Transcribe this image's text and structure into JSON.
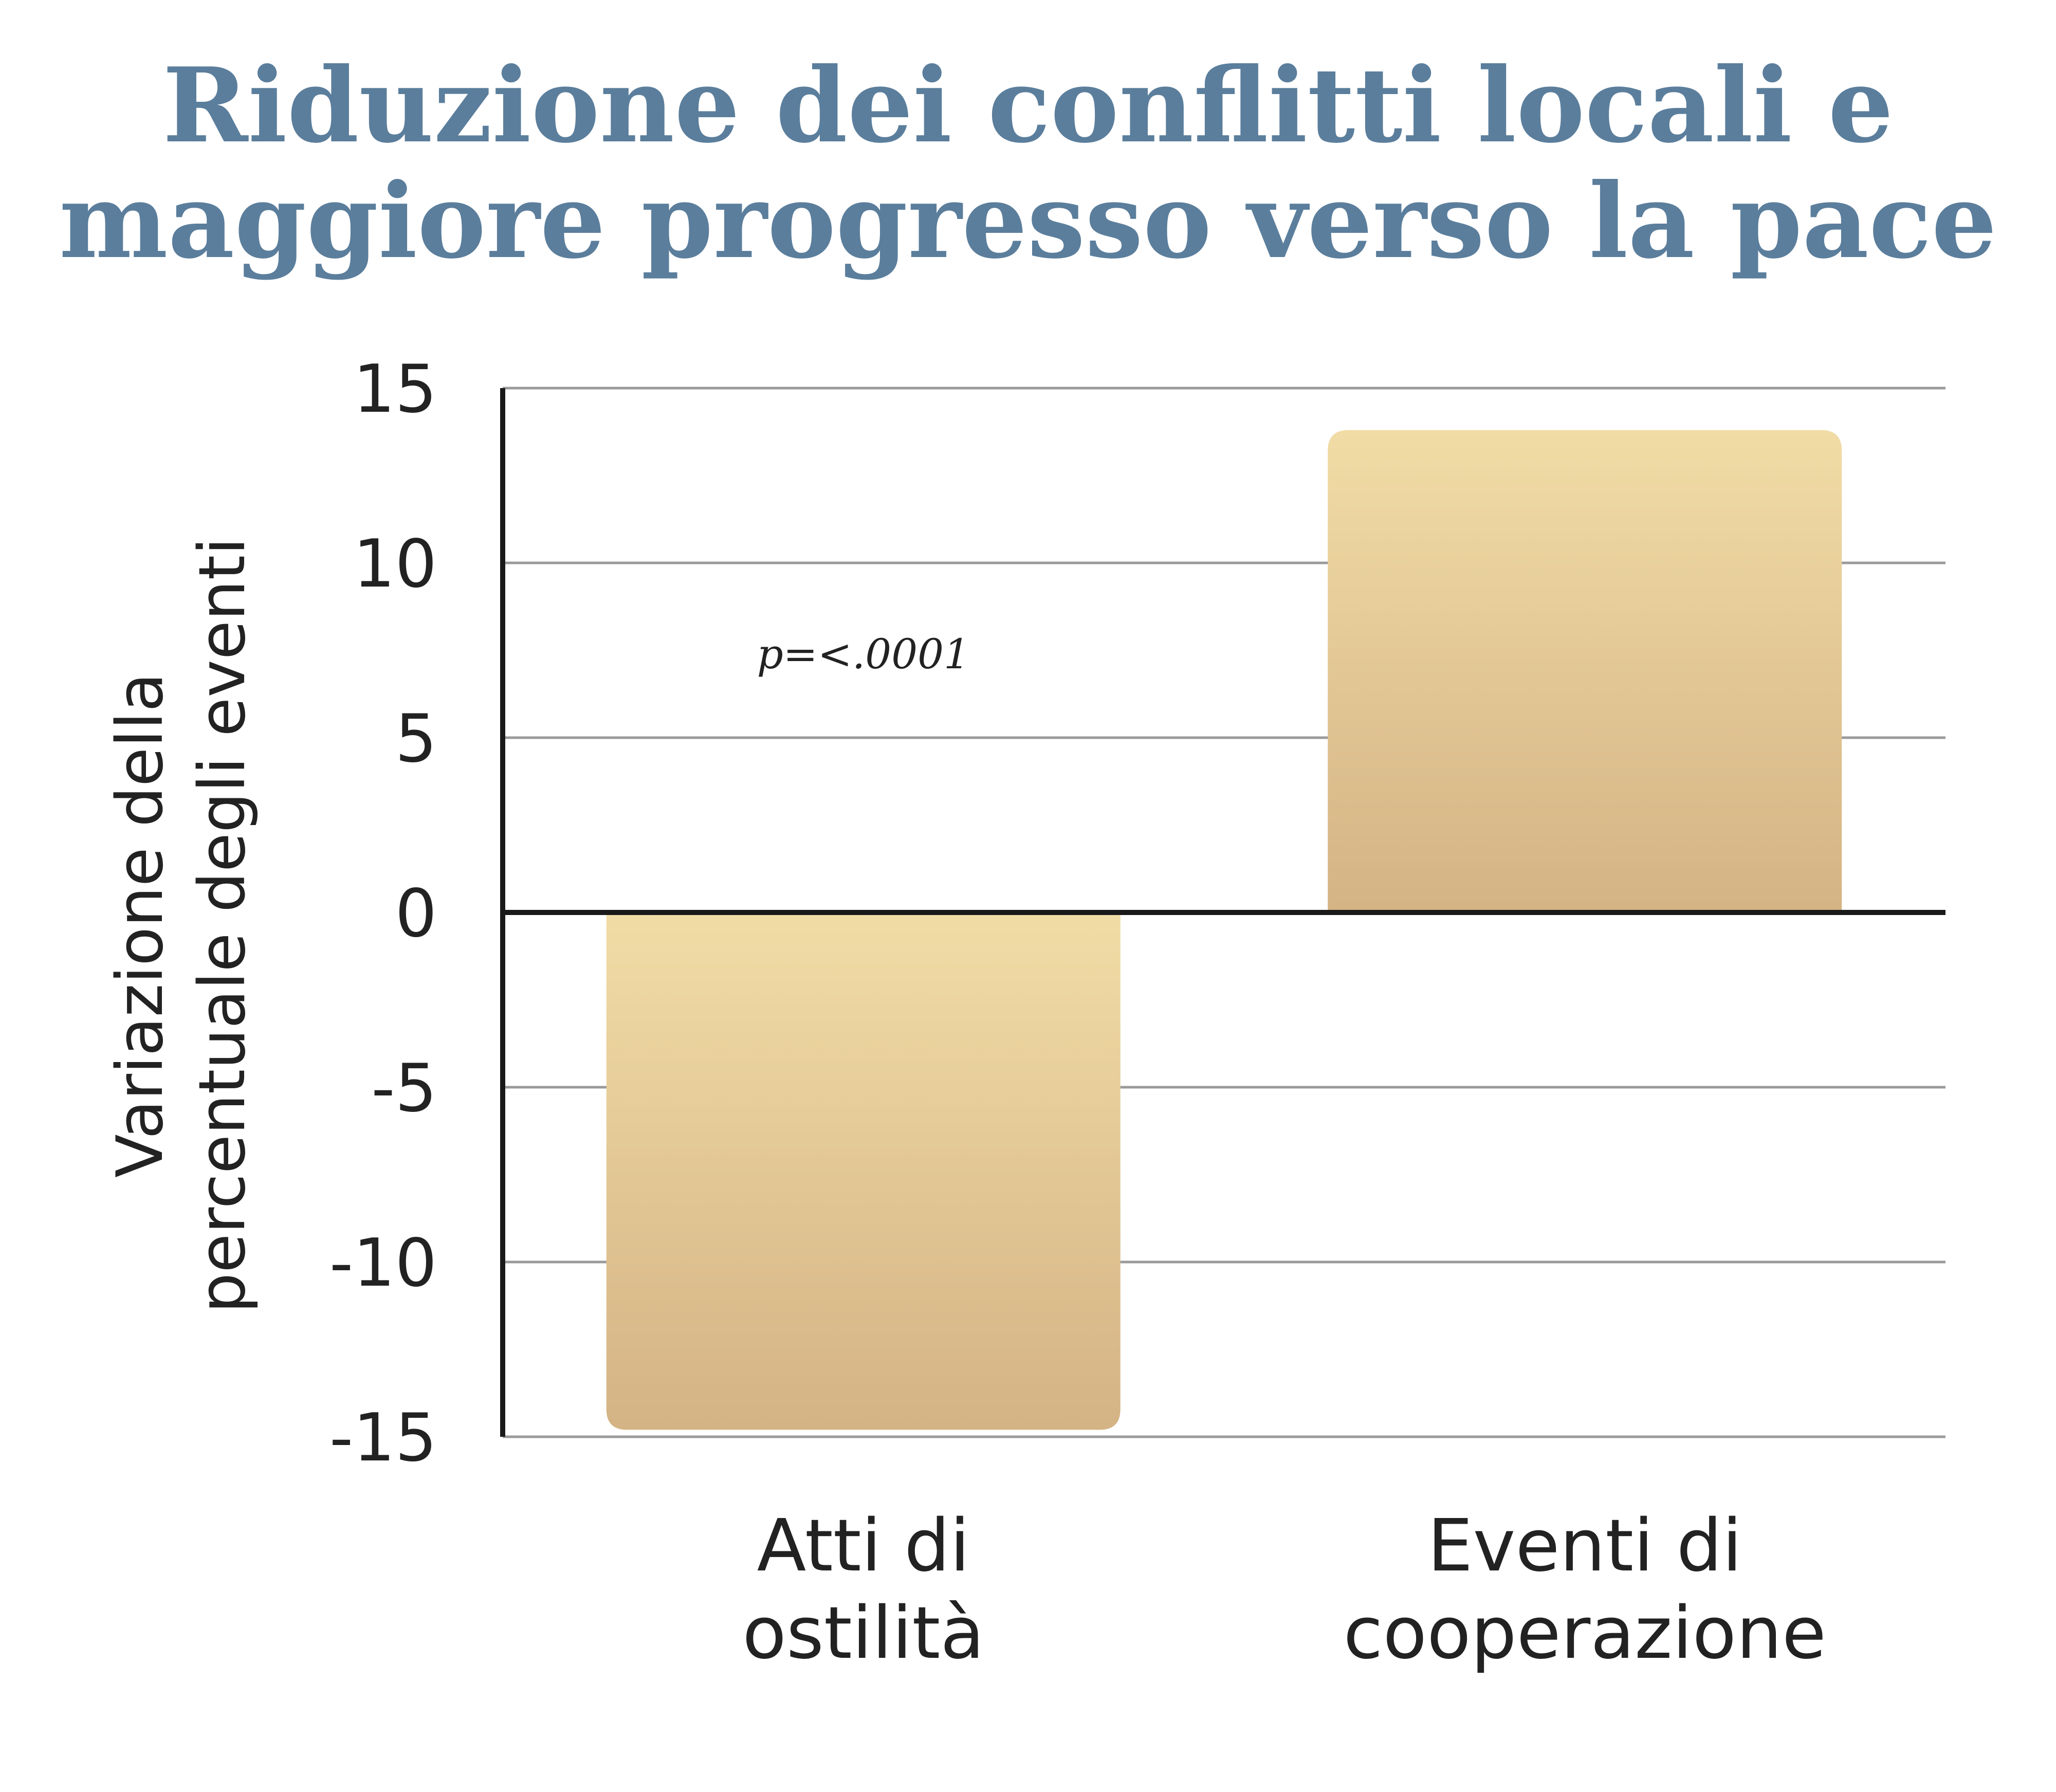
{
  "chart_data": {
    "type": "bar",
    "title": [
      "Riduzione dei conflitti locali e",
      "maggiore progresso verso la pace"
    ],
    "ylabel": [
      "Variazione della",
      "percentuale  degli eventi"
    ],
    "xlabel": "",
    "categories": [
      [
        "Atti di",
        "ostilità"
      ],
      [
        "Eventi di",
        "cooperazione"
      ]
    ],
    "values": [
      -14.8,
      13.8
    ],
    "ylim": [
      -15,
      15
    ],
    "yticks": [
      15,
      10,
      5,
      0,
      -5,
      -10,
      -15
    ],
    "grid": true,
    "legend": "none",
    "annotations": [
      {
        "text": "p=<.0001",
        "x_category_index": 0,
        "y": 7.4
      }
    ],
    "colors": {
      "title": "#5b7e9c",
      "bar_top": "#f1dca6",
      "bar_bottom": "#d4b384",
      "gridline": "#9a9a9a",
      "axis": "#1a1a1a",
      "text": "#222222"
    }
  }
}
